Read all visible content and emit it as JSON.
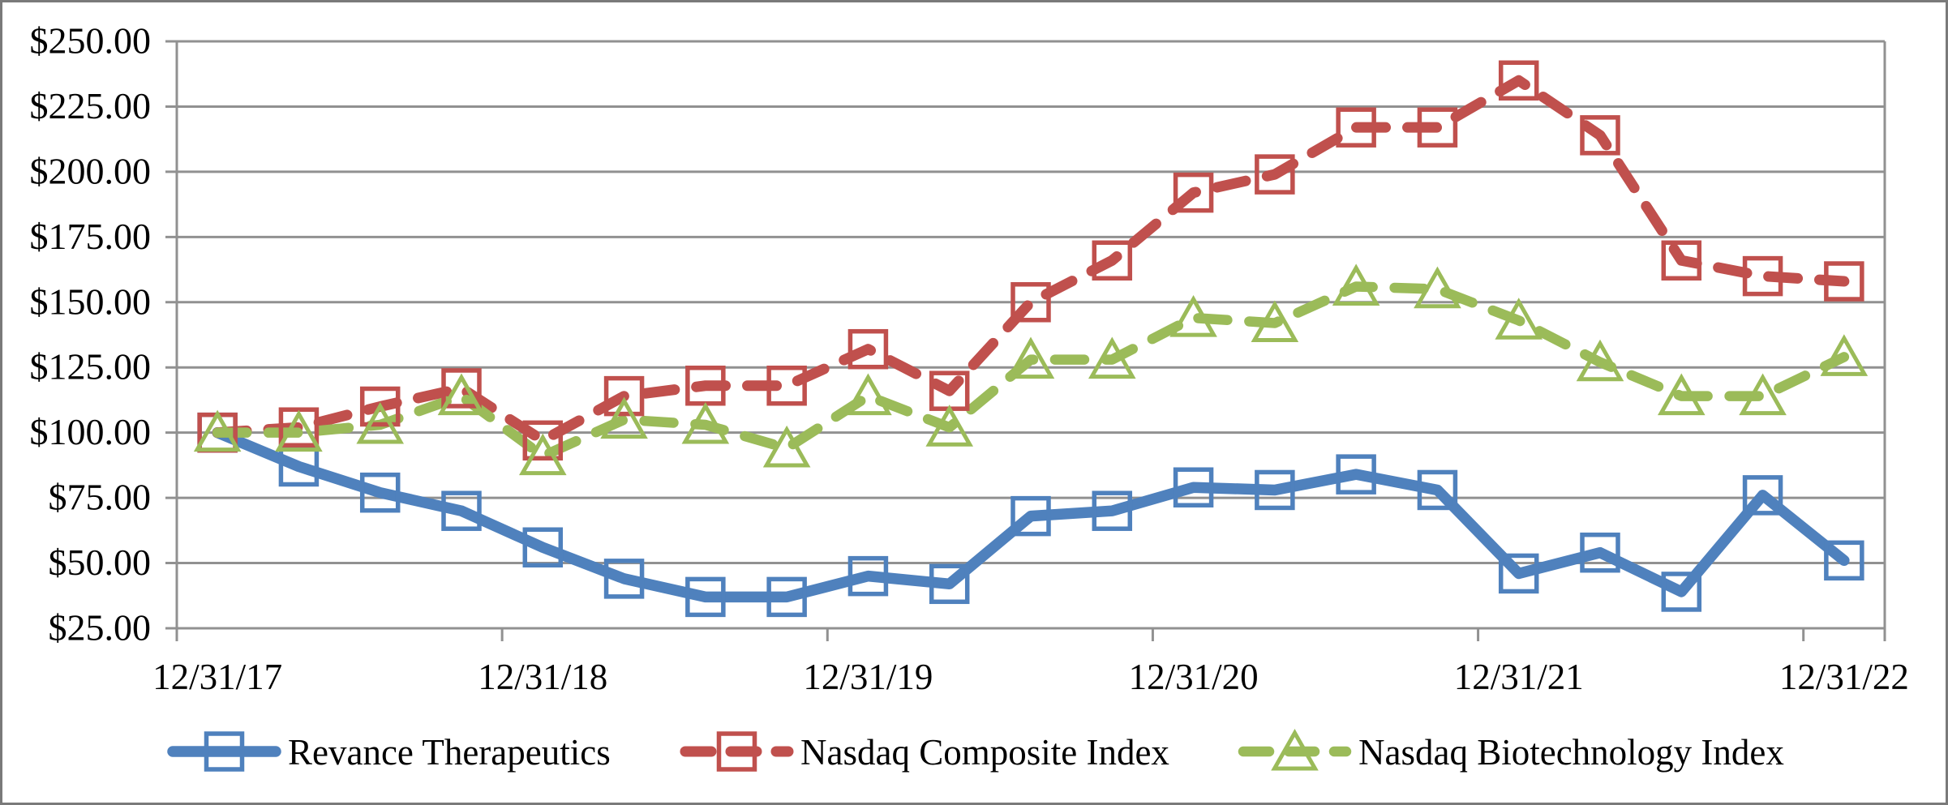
{
  "page": {
    "background": "#ffffff",
    "frame_border_color": "#7a7a7a",
    "text_color": "#000000"
  },
  "chart_data": {
    "type": "line",
    "title": "",
    "xlabel": "",
    "ylabel": "",
    "grid": true,
    "gridline_color": "#919191",
    "axis_color": "#919191",
    "legend_position": "bottom",
    "ylim": [
      25,
      250
    ],
    "y_axis": {
      "min": 25,
      "max": 250,
      "step": 25,
      "tick_labels": [
        "$25.00",
        "$50.00",
        "$75.00",
        "$100.00",
        "$125.00",
        "$150.00",
        "$175.00",
        "$200.00",
        "$225.00",
        "$250.00"
      ]
    },
    "x_axis": {
      "visible_tick_labels": [
        "12/31/17",
        "12/31/18",
        "12/31/19",
        "12/31/20",
        "12/31/21",
        "12/31/22"
      ],
      "ticks_every_n_points": 4
    },
    "categories": [
      "12/31/17",
      "3/31/18",
      "6/30/18",
      "9/30/18",
      "12/31/18",
      "3/31/19",
      "6/30/19",
      "9/30/19",
      "12/31/19",
      "3/31/20",
      "6/30/20",
      "9/30/20",
      "12/31/20",
      "3/31/21",
      "6/30/21",
      "9/30/21",
      "12/31/21",
      "3/31/22",
      "6/30/22",
      "9/30/22",
      "12/31/22"
    ],
    "series": [
      {
        "name": "Revance Therapeutics",
        "color": "#4F81BD",
        "marker": "square",
        "line_style": "solid",
        "line_width": 13.5,
        "values": [
          100,
          87,
          77,
          70,
          56,
          44,
          37,
          37,
          45,
          42,
          68,
          70,
          79,
          78,
          84,
          78,
          46,
          54,
          39,
          76,
          51
        ]
      },
      {
        "name": "Nasdaq Composite Index",
        "color": "#C0504D",
        "marker": "square",
        "line_style": "dashed",
        "line_width": 13,
        "values": [
          100,
          102,
          110,
          117,
          97,
          114,
          118,
          118,
          132,
          116,
          150,
          166,
          192,
          199,
          217,
          217,
          235,
          214,
          166,
          160,
          158
        ]
      },
      {
        "name": "Nasdaq Biotechnology Index",
        "color": "#9BBB59",
        "marker": "triangle",
        "line_style": "dashed",
        "line_width": 12.5,
        "values": [
          100,
          100,
          103,
          114,
          91,
          105,
          103,
          94,
          114,
          102,
          128,
          128,
          144,
          142,
          156,
          155,
          143,
          127,
          114,
          114,
          129
        ]
      }
    ]
  }
}
